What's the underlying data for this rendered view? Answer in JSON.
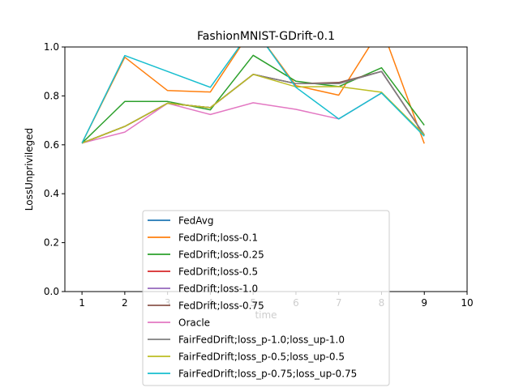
{
  "chart_data": {
    "type": "line",
    "title": "FashionMNIST-GDrift-0.1",
    "xlabel": "time",
    "ylabel": "LossUnprivileged",
    "xlim": [
      0.6,
      10
    ],
    "ylim": [
      0,
      1.0
    ],
    "xticks": [
      1,
      2,
      3,
      4,
      5,
      6,
      7,
      8,
      9,
      10
    ],
    "yticks": [
      0.0,
      0.2,
      0.4,
      0.6,
      0.8,
      1.0
    ],
    "ytick_labels": [
      "0.0",
      "0.2",
      "0.4",
      "0.6",
      "0.8",
      "1.0"
    ],
    "grid": false,
    "legend_position": "lower-center",
    "x": [
      1,
      2,
      3,
      4,
      5,
      6,
      7,
      8,
      9
    ],
    "series": [
      {
        "name": "FedAvg",
        "color": "#1f77b4",
        "values": [
          0.607,
          0.675,
          0.77,
          0.752,
          0.888,
          0.85,
          0.85,
          0.9,
          0.64
        ]
      },
      {
        "name": "FedDrift;loss-0.1",
        "color": "#ff7f0e",
        "values": [
          0.607,
          0.958,
          0.822,
          0.816,
          1.08,
          0.842,
          0.803,
          1.08,
          0.605
        ]
      },
      {
        "name": "FedDrift;loss-0.25",
        "color": "#2ca02c",
        "values": [
          0.607,
          0.777,
          0.777,
          0.743,
          0.966,
          0.86,
          0.838,
          0.915,
          0.68
        ]
      },
      {
        "name": "FedDrift;loss-0.5",
        "color": "#d62728",
        "values": [
          0.607,
          0.675,
          0.77,
          0.752,
          0.888,
          0.85,
          0.85,
          0.9,
          0.64
        ]
      },
      {
        "name": "FedDrift;loss-1.0",
        "color": "#9467bd",
        "values": [
          0.607,
          0.675,
          0.77,
          0.752,
          0.888,
          0.85,
          0.85,
          0.9,
          0.64
        ]
      },
      {
        "name": "FedDrift;loss-0.75",
        "color": "#8c564b",
        "values": [
          0.607,
          0.675,
          0.77,
          0.752,
          0.888,
          0.85,
          0.855,
          0.9,
          0.64
        ]
      },
      {
        "name": "Oracle",
        "color": "#e377c2",
        "values": [
          0.607,
          0.652,
          0.77,
          0.724,
          0.772,
          0.745,
          0.706,
          0.812,
          0.64
        ]
      },
      {
        "name": "FairFedDrift;loss_p-1.0;loss_up-1.0",
        "color": "#7f7f7f",
        "values": [
          0.607,
          0.675,
          0.77,
          0.752,
          0.888,
          0.85,
          0.85,
          0.9,
          0.64
        ]
      },
      {
        "name": "FairFedDrift;loss_p-0.5;loss_up-0.5",
        "color": "#bcbd22",
        "values": [
          0.607,
          0.675,
          0.77,
          0.752,
          0.888,
          0.837,
          0.838,
          0.815,
          0.64
        ]
      },
      {
        "name": "FairFedDrift;loss_p-0.75;loss_up-0.75",
        "color": "#17becf",
        "values": [
          0.607,
          0.965,
          0.9,
          0.835,
          1.08,
          0.835,
          0.706,
          0.812,
          0.635
        ]
      }
    ]
  }
}
